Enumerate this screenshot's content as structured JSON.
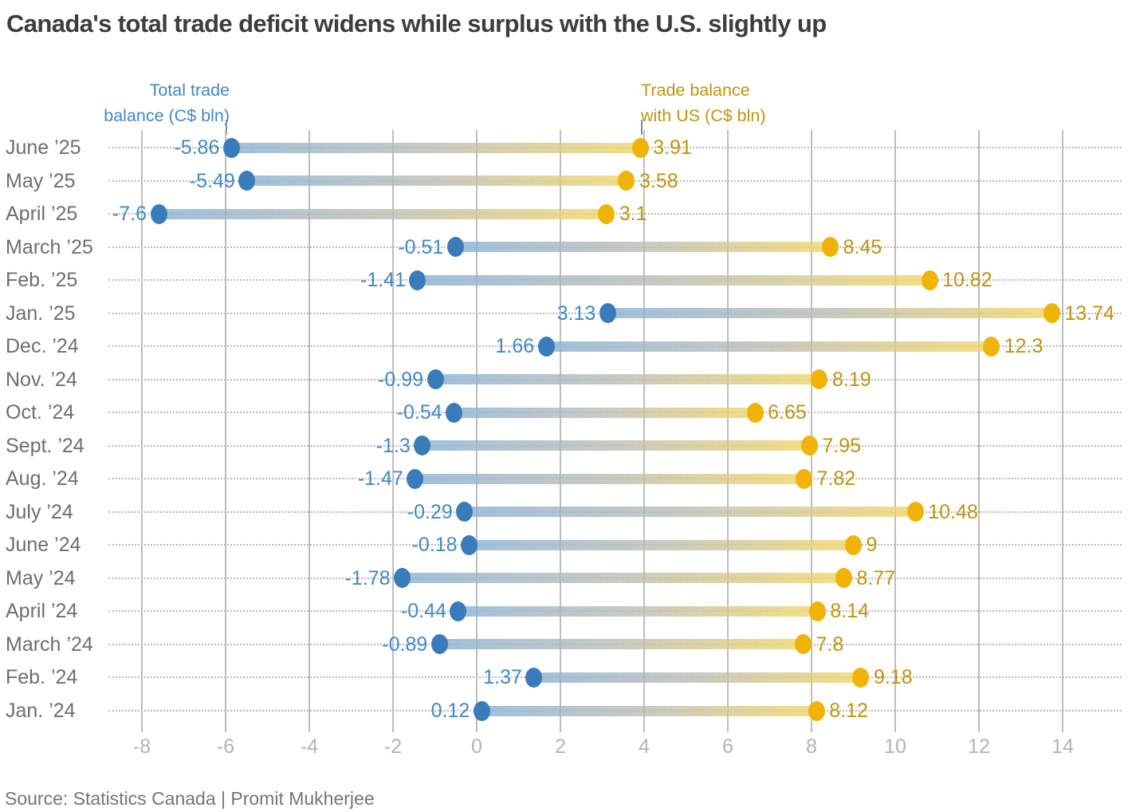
{
  "header": {
    "title": "Canada's total trade deficit widens while surplus with the U.S. slightly up"
  },
  "legend": {
    "total": {
      "line1": "Total trade",
      "line2": "balance (C$ bln)"
    },
    "us": {
      "line1": "Trade balance",
      "line2": "with US (C$ bln)"
    }
  },
  "footer": {
    "source": "Source: Statistics Canada | Promit Mukherjee"
  },
  "colors": {
    "blue_dot": "#3a7cba",
    "blue_label": "#4089c7",
    "gold_dot": "#f0b408",
    "gold_label": "#c0930d",
    "gridline": "#bdbdbd",
    "axis_text": "#b3b3b3",
    "category_text": "#6e6e6e",
    "title_text": "#3d3d3d"
  },
  "chart_data": {
    "type": "dumbbell",
    "title": "Canada's total trade deficit widens while surplus with the U.S. slightly up",
    "categories": [
      "June ’25",
      "May ’25",
      "April ’25",
      "March ’25",
      "Feb. ’25",
      "Jan. ’25",
      "Dec. ’24",
      "Nov. ’24",
      "Oct. ’24",
      "Sept. ’24",
      "Aug. ’24",
      "July ’24",
      "June ’24",
      "May ’24",
      "April ’24",
      "March ’24",
      "Feb. ’24",
      "Jan. ’24"
    ],
    "series": [
      {
        "name": "Total trade balance (C$ bln)",
        "color": "#3a7cba",
        "values": [
          -5.86,
          -5.49,
          -7.6,
          -0.51,
          -1.41,
          3.13,
          1.66,
          -0.99,
          -0.54,
          -1.3,
          -1.47,
          -0.29,
          -0.18,
          -1.78,
          -0.44,
          -0.89,
          1.37,
          0.12
        ]
      },
      {
        "name": "Trade balance with US (C$ bln)",
        "color": "#f0b408",
        "values": [
          3.91,
          3.58,
          3.1,
          8.45,
          10.82,
          13.74,
          12.3,
          8.19,
          6.65,
          7.95,
          7.82,
          10.48,
          9,
          8.77,
          8.14,
          7.8,
          9.18,
          8.12
        ]
      }
    ],
    "x_axis": {
      "ticks": [
        -8,
        -6,
        -4,
        -2,
        0,
        2,
        4,
        6,
        8,
        10,
        12,
        14
      ],
      "xlim": [
        -8.9,
        15.4
      ]
    },
    "grid": true,
    "legend_position": "top",
    "source": "Source: Statistics Canada | Promit Mukherjee"
  }
}
